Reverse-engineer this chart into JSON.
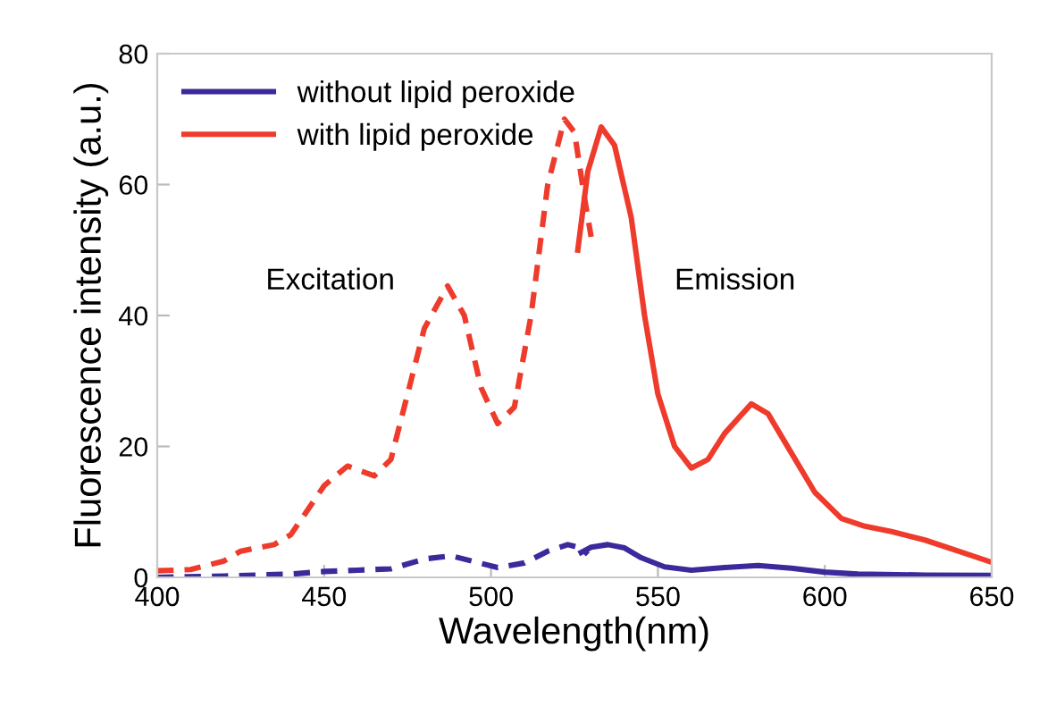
{
  "chart_data": {
    "type": "line",
    "xlabel": "Wavelength(nm)",
    "ylabel": "Fluorescence intensity (a.u.)",
    "xlim": [
      400,
      650
    ],
    "xticks": [
      400,
      450,
      500,
      550,
      600,
      650
    ],
    "ylim": [
      0,
      80
    ],
    "yticks": [
      0,
      20,
      40,
      60,
      80
    ],
    "grid": false,
    "legend": "top left",
    "marker": "none",
    "annotations": [
      "Excitation",
      "Emission"
    ],
    "series": [
      {
        "name": "without lipid peroxide",
        "color": "#3a2a9c",
        "line_style": "solid",
        "x": [
          527,
          530,
          535,
          540,
          545,
          552,
          560,
          570,
          580,
          590,
          600,
          610,
          630,
          650
        ],
        "values": [
          3.8,
          4.6,
          5,
          4.5,
          3,
          1.6,
          1.1,
          1.5,
          1.8,
          1.4,
          0.8,
          0.5,
          0.35,
          0.3
        ]
      },
      {
        "name": "with lipid peroxide",
        "color": "#ee3b2b",
        "line_style": "solid",
        "x": [
          526,
          529,
          533,
          537,
          542,
          546,
          550,
          555,
          560,
          565,
          570,
          578,
          583,
          590,
          597,
          605,
          612,
          620,
          630,
          640,
          650
        ],
        "values": [
          50,
          62,
          68.8,
          66,
          55,
          40,
          28,
          20,
          16.7,
          18,
          22,
          26.5,
          25,
          19,
          13,
          9,
          7.8,
          7,
          5.7,
          4,
          2.3
        ]
      },
      {
        "color": "#3a2a9c",
        "line_style": "dashed",
        "x": [
          400,
          420,
          440,
          450,
          460,
          470,
          480,
          488,
          495,
          502,
          510,
          517,
          523,
          527,
          529
        ],
        "values": [
          0,
          0.2,
          0.5,
          0.9,
          1.1,
          1.3,
          2.8,
          3.3,
          2.4,
          1.5,
          2.2,
          4,
          5,
          4.5,
          3.5
        ]
      },
      {
        "color": "#ee3b2b",
        "line_style": "dashed",
        "x": [
          400,
          410,
          420,
          425,
          435,
          440,
          450,
          457,
          465,
          470,
          475,
          480,
          487,
          492,
          497,
          502,
          507,
          512,
          517,
          522,
          525,
          528,
          530
        ],
        "values": [
          1.0,
          1.2,
          2.5,
          4,
          5,
          6.5,
          14,
          17,
          15.5,
          18,
          28,
          38,
          44.5,
          40,
          29,
          23.5,
          26,
          40,
          60,
          70,
          68,
          58,
          52
        ]
      }
    ]
  }
}
